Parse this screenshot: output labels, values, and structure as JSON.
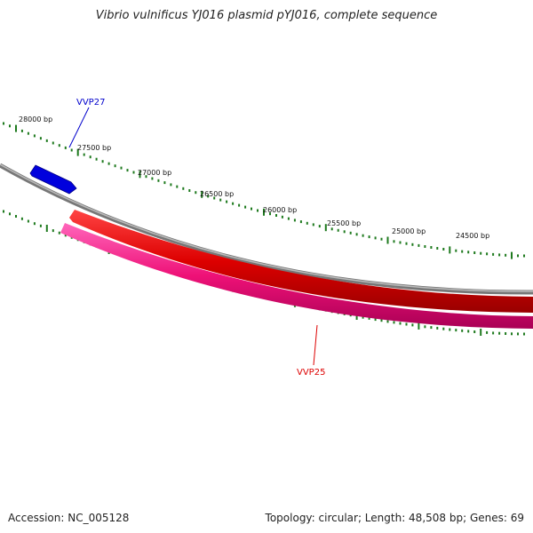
{
  "title": "Vibrio vulnificus YJ016 plasmid pYJ016, complete sequence",
  "map": {
    "ticks": [
      {
        "label": "28000 bp"
      },
      {
        "label": "27500 bp"
      },
      {
        "label": "27000 bp"
      },
      {
        "label": "26500 bp"
      },
      {
        "label": "26000 bp"
      },
      {
        "label": "25500 bp"
      },
      {
        "label": "25000 bp"
      },
      {
        "label": "24500 bp"
      }
    ],
    "genes": [
      {
        "name": "VVP27",
        "color": "#0000cc",
        "strand": "forward"
      },
      {
        "name": "VVP25",
        "color": "#dd0000",
        "strand": "reverse"
      }
    ],
    "colors": {
      "backbone": "#888888",
      "tick": "#1e7a1e",
      "reverse_track": "#ee1177"
    }
  },
  "footer": {
    "accession": "Accession: NC_005128",
    "summary": "Topology: circular; Length: 48,508 bp; Genes: 69"
  }
}
